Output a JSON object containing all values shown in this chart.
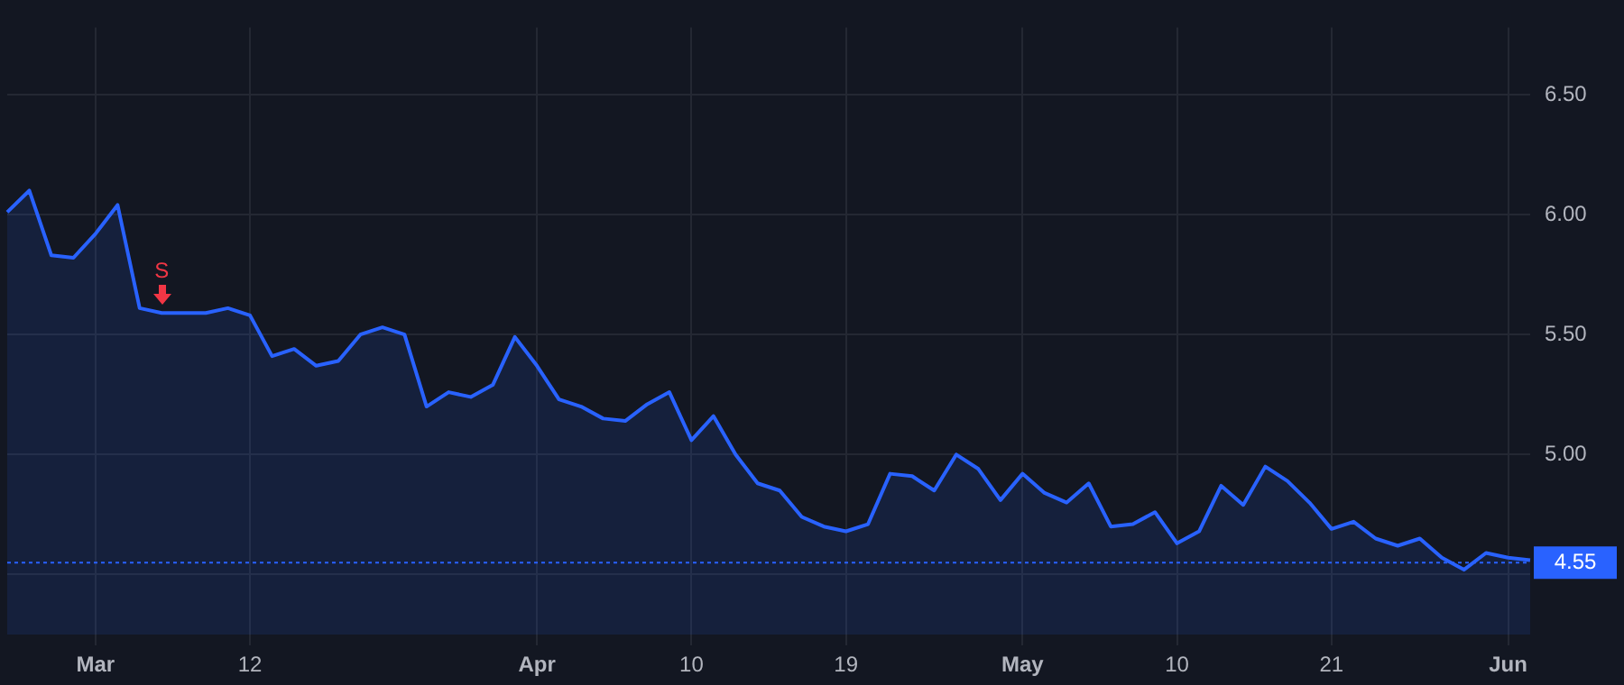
{
  "chart_data": {
    "type": "area",
    "categories": [
      null,
      null,
      null,
      null,
      "Mar",
      null,
      null,
      null,
      null,
      null,
      null,
      "12",
      null,
      null,
      null,
      null,
      null,
      null,
      null,
      null,
      null,
      null,
      null,
      null,
      "Apr",
      null,
      null,
      null,
      null,
      null,
      null,
      "10",
      null,
      null,
      null,
      null,
      null,
      null,
      "19",
      null,
      null,
      null,
      null,
      null,
      null,
      null,
      "May",
      null,
      null,
      null,
      null,
      null,
      null,
      "10",
      null,
      null,
      null,
      null,
      null,
      null,
      "21",
      null,
      null,
      null,
      null,
      null,
      null,
      null,
      "Jun",
      null
    ],
    "series": [
      {
        "color": "#2962ff",
        "values": [
          6.01,
          6.1,
          5.83,
          5.82,
          5.92,
          6.04,
          5.61,
          5.59,
          5.59,
          5.59,
          5.61,
          5.58,
          5.41,
          5.44,
          5.37,
          5.39,
          5.5,
          5.53,
          5.5,
          5.2,
          5.26,
          5.24,
          5.29,
          5.49,
          5.37,
          5.23,
          5.2,
          5.15,
          5.14,
          5.21,
          5.26,
          5.06,
          5.16,
          5.0,
          4.88,
          4.85,
          4.74,
          4.7,
          4.68,
          4.71,
          4.92,
          4.91,
          4.85,
          5.0,
          4.94,
          4.81,
          4.92,
          4.84,
          4.8,
          4.88,
          4.7,
          4.71,
          4.76,
          4.63,
          4.68,
          4.87,
          4.79,
          4.95,
          4.89,
          4.8,
          4.69,
          4.72,
          4.65,
          4.62,
          4.65,
          4.57,
          4.52,
          4.59,
          4.57,
          4.56
        ]
      }
    ],
    "ylim": [
      4.25,
      6.78
    ],
    "yticks": [
      {
        "value": 4.5,
        "label": null
      },
      {
        "value": 5,
        "label": "5.00"
      },
      {
        "value": 5.5,
        "label": "5.50"
      },
      {
        "value": 6,
        "label": "6.00"
      },
      {
        "value": 6.5,
        "label": "6.50"
      }
    ],
    "ref_lines": [
      {
        "axis": "y",
        "value": 4.55,
        "label": "4.55",
        "color": "#2962ff",
        "line_style": "dotted"
      }
    ],
    "annotations": [
      {
        "text": "S",
        "y": 5.59
      }
    ],
    "grid": true,
    "marker": "none",
    "legend": false
  }
}
